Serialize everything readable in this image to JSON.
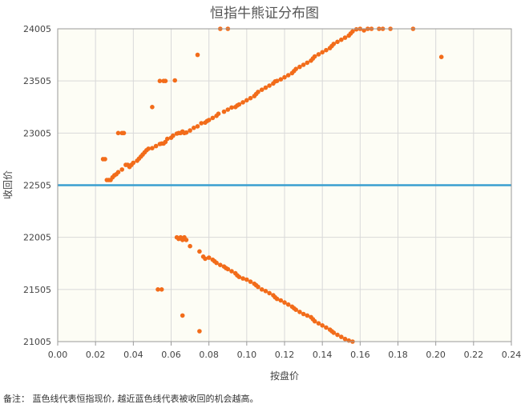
{
  "chart_data": {
    "type": "scatter",
    "title": "恒指牛熊证分布图",
    "xlabel": "按盘价",
    "ylabel": "收回价",
    "xlim": [
      0,
      0.24
    ],
    "ylim": [
      21005,
      24005
    ],
    "x_ticks": [
      "0.00",
      "0.02",
      "0.04",
      "0.06",
      "0.08",
      "0.10",
      "0.12",
      "0.14",
      "0.16",
      "0.18",
      "0.20",
      "0.22",
      "0.24"
    ],
    "y_ticks": [
      "21005",
      "21505",
      "22005",
      "22505",
      "23005",
      "23505",
      "24005"
    ],
    "grid": true,
    "reference_line": {
      "y": 22505,
      "color": "#3a9fd0"
    },
    "plot_background": "#fdfdf5",
    "point_color": "#f26c1a",
    "series": [
      {
        "role": "bull",
        "points": [
          [
            0.024,
            22755
          ],
          [
            0.025,
            22755
          ],
          [
            0.026,
            22555
          ],
          [
            0.027,
            22555
          ],
          [
            0.028,
            22555
          ],
          [
            0.029,
            22580
          ],
          [
            0.03,
            22600
          ],
          [
            0.031,
            22610
          ],
          [
            0.032,
            22630
          ],
          [
            0.032,
            23005
          ],
          [
            0.034,
            23005
          ],
          [
            0.035,
            23005
          ],
          [
            0.034,
            22655
          ],
          [
            0.036,
            22700
          ],
          [
            0.037,
            22700
          ],
          [
            0.038,
            22680
          ],
          [
            0.039,
            22700
          ],
          [
            0.04,
            22720
          ],
          [
            0.042,
            22740
          ],
          [
            0.043,
            22760
          ],
          [
            0.044,
            22780
          ],
          [
            0.045,
            22800
          ],
          [
            0.046,
            22820
          ],
          [
            0.047,
            22840
          ],
          [
            0.048,
            22855
          ],
          [
            0.05,
            22860
          ],
          [
            0.05,
            23255
          ],
          [
            0.052,
            22880
          ],
          [
            0.054,
            22900
          ],
          [
            0.055,
            22905
          ],
          [
            0.056,
            22905
          ],
          [
            0.057,
            22920
          ],
          [
            0.058,
            22950
          ],
          [
            0.054,
            23505
          ],
          [
            0.056,
            23505
          ],
          [
            0.057,
            23505
          ],
          [
            0.062,
            23510
          ],
          [
            0.06,
            22960
          ],
          [
            0.061,
            22980
          ],
          [
            0.063,
            23000
          ],
          [
            0.064,
            23005
          ],
          [
            0.065,
            23005
          ],
          [
            0.066,
            23020
          ],
          [
            0.067,
            23005
          ],
          [
            0.068,
            23010
          ],
          [
            0.07,
            23030
          ],
          [
            0.072,
            23055
          ],
          [
            0.074,
            23070
          ],
          [
            0.074,
            23755
          ],
          [
            0.076,
            23100
          ],
          [
            0.078,
            23105
          ],
          [
            0.079,
            23120
          ],
          [
            0.08,
            23130
          ],
          [
            0.082,
            23150
          ],
          [
            0.084,
            23170
          ],
          [
            0.085,
            23190
          ],
          [
            0.086,
            24005
          ],
          [
            0.088,
            23210
          ],
          [
            0.09,
            24005
          ],
          [
            0.09,
            23230
          ],
          [
            0.092,
            23250
          ],
          [
            0.094,
            23255
          ],
          [
            0.095,
            23270
          ],
          [
            0.096,
            23280
          ],
          [
            0.098,
            23300
          ],
          [
            0.1,
            23320
          ],
          [
            0.102,
            23340
          ],
          [
            0.104,
            23360
          ],
          [
            0.105,
            23380
          ],
          [
            0.106,
            23400
          ],
          [
            0.108,
            23420
          ],
          [
            0.11,
            23440
          ],
          [
            0.112,
            23460
          ],
          [
            0.114,
            23480
          ],
          [
            0.115,
            23500
          ],
          [
            0.116,
            23505
          ],
          [
            0.118,
            23520
          ],
          [
            0.12,
            23540
          ],
          [
            0.122,
            23560
          ],
          [
            0.124,
            23580
          ],
          [
            0.125,
            23600
          ],
          [
            0.126,
            23620
          ],
          [
            0.128,
            23640
          ],
          [
            0.13,
            23660
          ],
          [
            0.132,
            23680
          ],
          [
            0.134,
            23700
          ],
          [
            0.135,
            23720
          ],
          [
            0.136,
            23740
          ],
          [
            0.138,
            23760
          ],
          [
            0.14,
            23780
          ],
          [
            0.142,
            23800
          ],
          [
            0.144,
            23820
          ],
          [
            0.145,
            23840
          ],
          [
            0.146,
            23860
          ],
          [
            0.148,
            23880
          ],
          [
            0.15,
            23900
          ],
          [
            0.152,
            23920
          ],
          [
            0.154,
            23940
          ],
          [
            0.155,
            23960
          ],
          [
            0.156,
            23980
          ],
          [
            0.158,
            24000
          ],
          [
            0.16,
            24005
          ],
          [
            0.162,
            23990
          ],
          [
            0.164,
            24005
          ],
          [
            0.166,
            24005
          ],
          [
            0.17,
            24005
          ],
          [
            0.172,
            24005
          ],
          [
            0.176,
            24005
          ],
          [
            0.188,
            24005
          ],
          [
            0.203,
            23735
          ]
        ]
      },
      {
        "role": "bear",
        "points": [
          [
            0.063,
            22005
          ],
          [
            0.064,
            21990
          ],
          [
            0.065,
            22005
          ],
          [
            0.066,
            21980
          ],
          [
            0.067,
            22005
          ],
          [
            0.068,
            21980
          ],
          [
            0.07,
            21920
          ],
          [
            0.075,
            21870
          ],
          [
            0.066,
            21255
          ],
          [
            0.053,
            21505
          ],
          [
            0.055,
            21505
          ],
          [
            0.075,
            21105
          ],
          [
            0.077,
            21820
          ],
          [
            0.078,
            21800
          ],
          [
            0.08,
            21810
          ],
          [
            0.082,
            21790
          ],
          [
            0.083,
            21775
          ],
          [
            0.084,
            21760
          ],
          [
            0.086,
            21740
          ],
          [
            0.088,
            21725
          ],
          [
            0.089,
            21710
          ],
          [
            0.09,
            21700
          ],
          [
            0.092,
            21680
          ],
          [
            0.094,
            21660
          ],
          [
            0.095,
            21640
          ],
          [
            0.096,
            21625
          ],
          [
            0.098,
            21610
          ],
          [
            0.1,
            21600
          ],
          [
            0.102,
            21580
          ],
          [
            0.104,
            21560
          ],
          [
            0.105,
            21545
          ],
          [
            0.106,
            21530
          ],
          [
            0.108,
            21505
          ],
          [
            0.11,
            21490
          ],
          [
            0.112,
            21470
          ],
          [
            0.114,
            21450
          ],
          [
            0.115,
            21430
          ],
          [
            0.116,
            21415
          ],
          [
            0.118,
            21400
          ],
          [
            0.12,
            21380
          ],
          [
            0.122,
            21360
          ],
          [
            0.124,
            21340
          ],
          [
            0.125,
            21325
          ],
          [
            0.126,
            21310
          ],
          [
            0.128,
            21290
          ],
          [
            0.13,
            21270
          ],
          [
            0.132,
            21255
          ],
          [
            0.134,
            21240
          ],
          [
            0.135,
            21220
          ],
          [
            0.136,
            21200
          ],
          [
            0.138,
            21180
          ],
          [
            0.14,
            21160
          ],
          [
            0.142,
            21140
          ],
          [
            0.144,
            21120
          ],
          [
            0.145,
            21105
          ],
          [
            0.146,
            21090
          ],
          [
            0.148,
            21070
          ],
          [
            0.15,
            21050
          ],
          [
            0.152,
            21030
          ],
          [
            0.154,
            21015
          ],
          [
            0.156,
            21005
          ]
        ]
      }
    ]
  },
  "note": "备注：  蓝色线代表恒指现价, 越近蓝色线代表被收回的机会越高。"
}
